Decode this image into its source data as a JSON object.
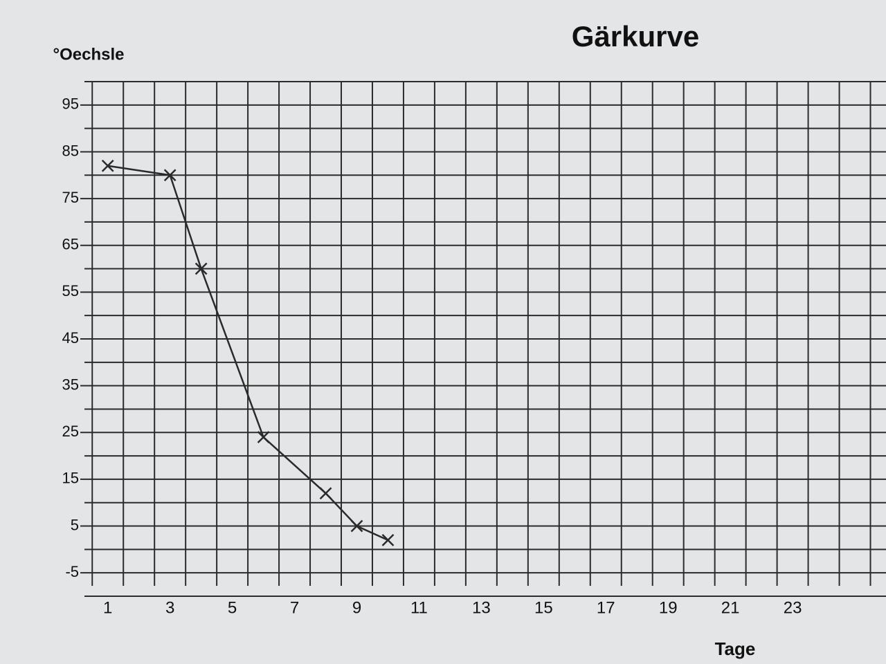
{
  "chart_data": {
    "type": "line",
    "title": "Gärkurve",
    "y_label": "°Oechsle",
    "x_label": "Tage",
    "x": [
      1,
      3,
      4,
      6,
      8,
      9,
      10
    ],
    "series": [
      {
        "color": "#2a2a2a",
        "values": [
          82,
          80,
          60,
          24,
          12,
          5,
          2
        ]
      }
    ],
    "xlim": [
      0.25,
      26
    ],
    "xticks": [
      1,
      3,
      5,
      7,
      9,
      11,
      13,
      15,
      17,
      19,
      21,
      23
    ],
    "ylim": [
      -10,
      100
    ],
    "yticks": [
      -5,
      5,
      15,
      25,
      35,
      45,
      55,
      65,
      75,
      85,
      95
    ],
    "grid": true
  }
}
